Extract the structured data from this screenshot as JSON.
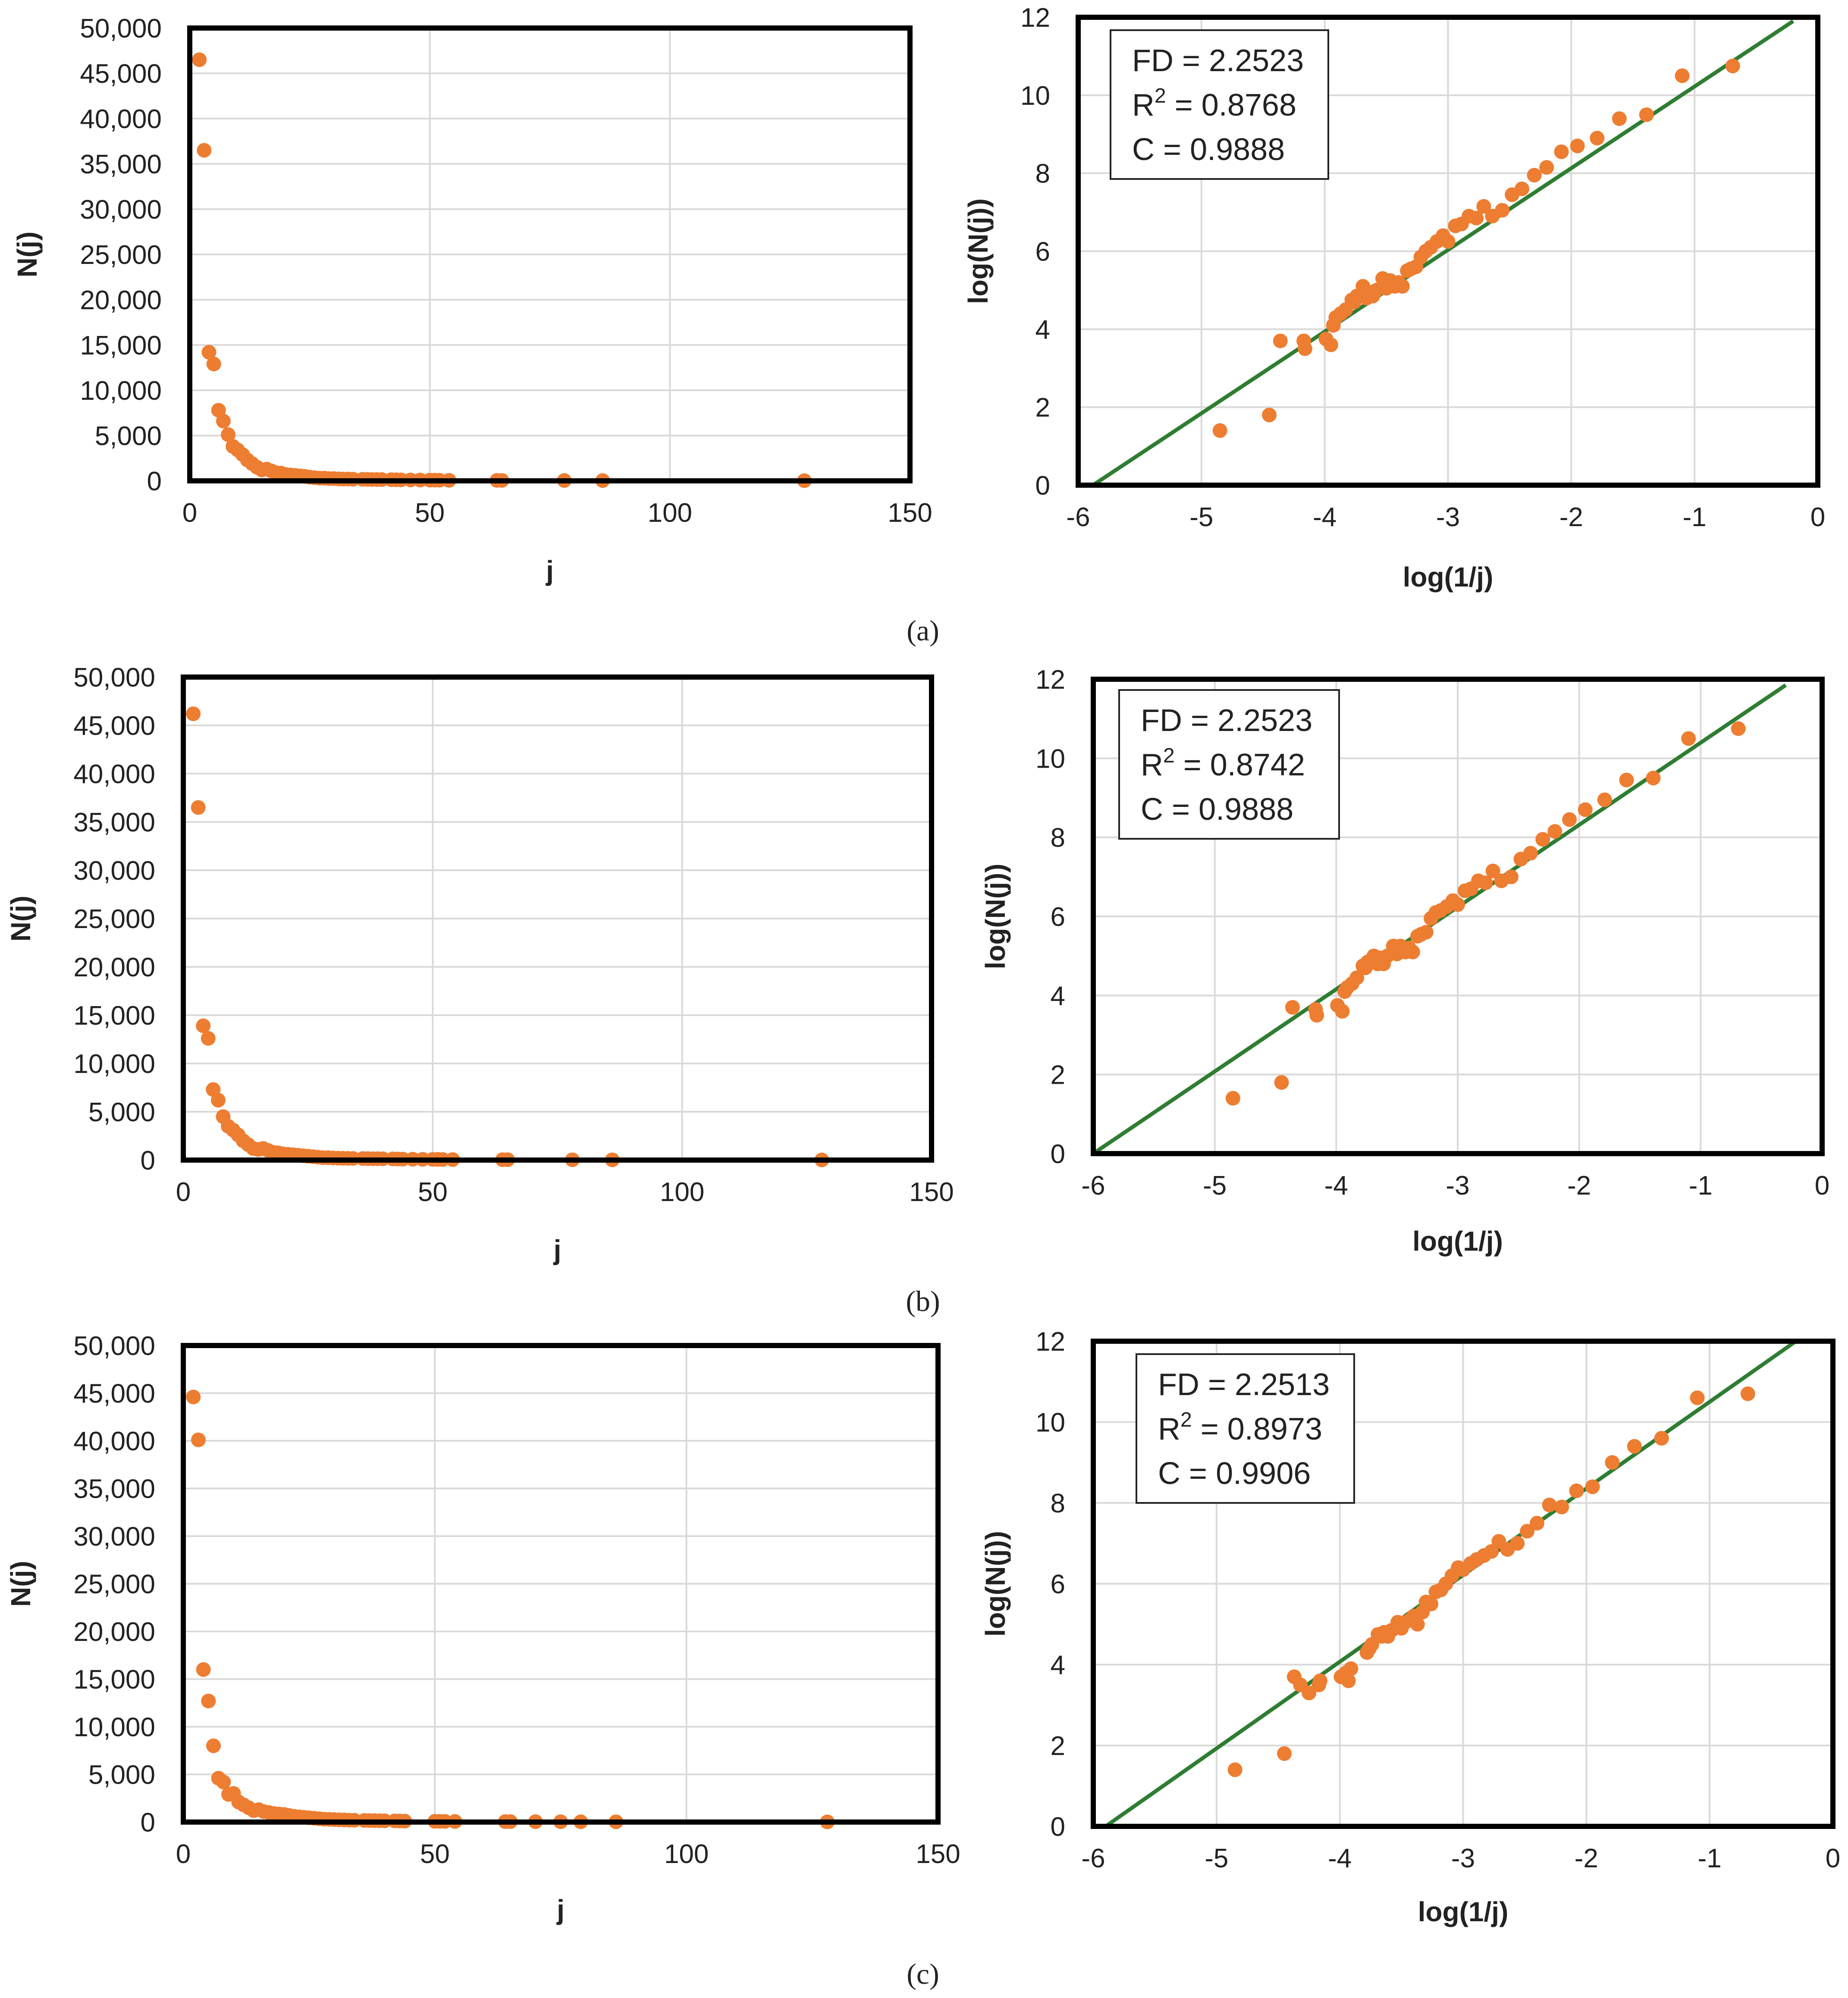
{
  "colors": {
    "point": "#ed7d31",
    "fit_line": "#2e7d32",
    "grid": "#d9d9d9",
    "frame": "#000000"
  },
  "chart_data": [
    {
      "id": "a-left",
      "type": "scatter",
      "panel": "a",
      "xlabel": "j",
      "ylabel": "N(j)",
      "xlim": [
        0,
        150
      ],
      "ylim": [
        0,
        50000
      ],
      "xticks": [
        0,
        50,
        100,
        150
      ],
      "xtick_labels": [
        "0",
        "50",
        "100",
        "150"
      ],
      "yticks": [
        0,
        5000,
        10000,
        15000,
        20000,
        25000,
        30000,
        35000,
        40000,
        45000,
        50000
      ],
      "ytick_labels": [
        "0",
        "5,000",
        "10,000",
        "15,000",
        "20,000",
        "25,000",
        "30,000",
        "35,000",
        "40,000",
        "45,000",
        "50,000"
      ],
      "grid": true,
      "x": [
        2,
        3,
        4,
        5,
        6,
        7,
        8,
        9,
        10,
        11,
        12,
        13,
        14,
        15,
        16,
        17,
        18,
        19,
        20,
        21,
        22,
        23,
        24,
        25,
        26,
        27,
        28,
        29,
        30,
        31,
        32,
        33,
        34,
        36,
        37,
        38,
        39,
        40,
        42,
        43,
        44,
        46,
        48,
        50,
        51,
        52,
        54,
        64,
        65,
        78,
        86,
        128
      ],
      "y": [
        46500,
        36500,
        14200,
        12900,
        7800,
        6600,
        5100,
        3800,
        3400,
        2900,
        2300,
        1900,
        1500,
        1200,
        1300,
        1100,
        900,
        850,
        700,
        650,
        600,
        550,
        500,
        400,
        350,
        300,
        300,
        250,
        250,
        220,
        200,
        200,
        180,
        170,
        160,
        150,
        150,
        140,
        130,
        120,
        110,
        100,
        90,
        80,
        80,
        70,
        60,
        50,
        50,
        40,
        30,
        20
      ]
    },
    {
      "id": "a-right",
      "type": "scatter",
      "panel": "a",
      "xlabel": "log(1/j)",
      "ylabel": "log(N(j))",
      "xlim": [
        -6,
        0
      ],
      "ylim": [
        0,
        12
      ],
      "xticks": [
        -6,
        -5,
        -4,
        -3,
        -2,
        -1,
        0
      ],
      "xtick_labels": [
        "-6",
        "-5",
        "-4",
        "-3",
        "-2",
        "-1",
        "0"
      ],
      "yticks": [
        0,
        2,
        4,
        6,
        8,
        10,
        12
      ],
      "ytick_labels": [
        "0",
        "2",
        "4",
        "6",
        "8",
        "10",
        "12"
      ],
      "grid": true,
      "fit_line": {
        "x": [
          -5.88,
          -0.2
        ],
        "y": [
          0,
          11.9
        ]
      },
      "annotation": {
        "fd_label": "FD",
        "fd_value": "2.2523",
        "r2_label": "R",
        "r2_sup": "2",
        "r2_value": "0.8768",
        "c_label": "C",
        "c_value": "0.9888"
      },
      "x": [
        -0.69,
        -1.1,
        -1.39,
        -1.61,
        -1.79,
        -1.95,
        -2.08,
        -2.2,
        -2.3,
        -2.4,
        -2.48,
        -2.56,
        -2.64,
        -2.71,
        -2.77,
        -2.83,
        -2.89,
        -2.94,
        -3.0,
        -3.04,
        -3.09,
        -3.14,
        -3.18,
        -3.22,
        -3.26,
        -3.3,
        -3.33,
        -3.37,
        -3.4,
        -3.43,
        -3.47,
        -3.5,
        -3.53,
        -3.58,
        -3.61,
        -3.64,
        -3.66,
        -3.69,
        -3.74,
        -3.76,
        -3.78,
        -3.83,
        -3.87,
        -3.91,
        -3.93,
        -3.95,
        -3.99,
        -4.16,
        -4.17,
        -4.36,
        -4.45,
        -4.85
      ],
      "y": [
        10.75,
        10.5,
        9.5,
        9.4,
        8.9,
        8.7,
        8.55,
        8.15,
        7.95,
        7.6,
        7.45,
        7.05,
        6.9,
        7.15,
        6.85,
        6.9,
        6.7,
        6.65,
        6.25,
        6.4,
        6.25,
        6.1,
        6.0,
        5.85,
        5.6,
        5.55,
        5.5,
        5.1,
        5.2,
        5.1,
        5.25,
        5.05,
        5.3,
        5.0,
        4.85,
        4.95,
        4.8,
        5.1,
        4.85,
        4.7,
        4.75,
        4.5,
        4.4,
        4.3,
        4.1,
        3.6,
        3.75,
        3.5,
        3.7,
        3.7,
        1.8,
        1.4
      ]
    },
    {
      "id": "b-left",
      "type": "scatter",
      "panel": "b",
      "xlabel": "j",
      "ylabel": "N(j)",
      "xlim": [
        0,
        150
      ],
      "ylim": [
        0,
        50000
      ],
      "xticks": [
        0,
        50,
        100,
        150
      ],
      "xtick_labels": [
        "0",
        "50",
        "100",
        "150"
      ],
      "yticks": [
        0,
        5000,
        10000,
        15000,
        20000,
        25000,
        30000,
        35000,
        40000,
        45000,
        50000
      ],
      "ytick_labels": [
        "0",
        "5,000",
        "10,000",
        "15,000",
        "20,000",
        "25,000",
        "30,000",
        "35,000",
        "40,000",
        "45,000",
        "50,000"
      ],
      "grid": true,
      "x": [
        2,
        3,
        4,
        5,
        6,
        7,
        8,
        9,
        10,
        11,
        12,
        13,
        14,
        15,
        16,
        17,
        18,
        19,
        20,
        21,
        22,
        23,
        24,
        25,
        26,
        27,
        28,
        29,
        30,
        31,
        32,
        33,
        34,
        36,
        37,
        38,
        39,
        40,
        42,
        43,
        44,
        46,
        48,
        50,
        51,
        52,
        54,
        64,
        65,
        78,
        86,
        128
      ],
      "y": [
        46200,
        36500,
        13900,
        12600,
        7300,
        6200,
        4500,
        3500,
        3100,
        2600,
        2000,
        1600,
        1200,
        1100,
        1200,
        1000,
        800,
        750,
        650,
        600,
        550,
        500,
        450,
        400,
        350,
        300,
        250,
        250,
        220,
        200,
        190,
        180,
        170,
        160,
        150,
        140,
        140,
        130,
        120,
        110,
        100,
        90,
        80,
        70,
        70,
        60,
        50,
        40,
        40,
        30,
        25,
        15
      ]
    },
    {
      "id": "b-right",
      "type": "scatter",
      "panel": "b",
      "xlabel": "log(1/j)",
      "ylabel": "log(N(j))",
      "xlim": [
        -6,
        0
      ],
      "ylim": [
        0,
        12
      ],
      "xticks": [
        -6,
        -5,
        -4,
        -3,
        -2,
        -1,
        0
      ],
      "xtick_labels": [
        "-6",
        "-5",
        "-4",
        "-3",
        "-2",
        "-1",
        "0"
      ],
      "yticks": [
        0,
        2,
        4,
        6,
        8,
        10,
        12
      ],
      "ytick_labels": [
        "0",
        "2",
        "4",
        "6",
        "8",
        "10",
        "12"
      ],
      "grid": true,
      "fit_line": {
        "x": [
          -6.0,
          -0.3
        ],
        "y": [
          0,
          11.85
        ]
      },
      "annotation": {
        "fd_label": "FD",
        "fd_value": "2.2523",
        "r2_label": "R",
        "r2_sup": "2",
        "r2_value": "0.8742",
        "c_label": "C",
        "c_value": "0.9888"
      },
      "x": [
        -0.69,
        -1.1,
        -1.39,
        -1.61,
        -1.79,
        -1.95,
        -2.08,
        -2.2,
        -2.3,
        -2.4,
        -2.48,
        -2.56,
        -2.64,
        -2.71,
        -2.77,
        -2.83,
        -2.89,
        -2.94,
        -3.0,
        -3.04,
        -3.09,
        -3.14,
        -3.18,
        -3.22,
        -3.26,
        -3.3,
        -3.33,
        -3.37,
        -3.4,
        -3.43,
        -3.47,
        -3.5,
        -3.53,
        -3.58,
        -3.61,
        -3.64,
        -3.66,
        -3.69,
        -3.74,
        -3.76,
        -3.78,
        -3.83,
        -3.87,
        -3.91,
        -3.93,
        -3.95,
        -3.99,
        -4.16,
        -4.17,
        -4.36,
        -4.45,
        -4.85
      ],
      "y": [
        10.75,
        10.5,
        9.5,
        9.45,
        8.95,
        8.7,
        8.45,
        8.15,
        7.95,
        7.6,
        7.45,
        7.0,
        6.9,
        7.15,
        6.85,
        6.9,
        6.7,
        6.65,
        6.3,
        6.4,
        6.25,
        6.15,
        6.1,
        5.95,
        5.6,
        5.55,
        5.5,
        5.1,
        5.2,
        5.1,
        5.25,
        5.05,
        5.25,
        5.0,
        4.8,
        4.95,
        4.8,
        5.0,
        4.85,
        4.7,
        4.75,
        4.45,
        4.3,
        4.2,
        4.1,
        3.6,
        3.75,
        3.5,
        3.65,
        3.7,
        1.8,
        1.4
      ]
    },
    {
      "id": "c-left",
      "type": "scatter",
      "panel": "c",
      "xlabel": "j",
      "ylabel": "N(j)",
      "xlim": [
        0,
        150
      ],
      "ylim": [
        0,
        50000
      ],
      "xticks": [
        0,
        50,
        100,
        150
      ],
      "xtick_labels": [
        "0",
        "50",
        "100",
        "150"
      ],
      "yticks": [
        0,
        5000,
        10000,
        15000,
        20000,
        25000,
        30000,
        35000,
        40000,
        45000,
        50000
      ],
      "ytick_labels": [
        "0",
        "5,000",
        "10,000",
        "15,000",
        "20,000",
        "25,000",
        "30,000",
        "35,000",
        "40,000",
        "45,000",
        "50,000"
      ],
      "grid": true,
      "x": [
        2,
        3,
        4,
        5,
        6,
        7,
        8,
        9,
        10,
        11,
        12,
        13,
        14,
        15,
        16,
        17,
        18,
        19,
        20,
        21,
        22,
        23,
        24,
        25,
        26,
        27,
        28,
        29,
        30,
        31,
        32,
        33,
        34,
        36,
        37,
        38,
        39,
        40,
        42,
        43,
        44,
        50,
        51,
        52,
        54,
        64,
        65,
        70,
        75,
        79,
        86,
        128
      ],
      "y": [
        44600,
        40100,
        16000,
        12700,
        8000,
        4600,
        4200,
        2900,
        3000,
        2100,
        1800,
        1500,
        1200,
        1300,
        1100,
        1000,
        900,
        850,
        800,
        700,
        600,
        550,
        500,
        450,
        400,
        350,
        300,
        280,
        260,
        240,
        220,
        200,
        190,
        170,
        160,
        150,
        140,
        130,
        120,
        110,
        100,
        80,
        75,
        70,
        60,
        50,
        45,
        40,
        35,
        30,
        25,
        15
      ]
    },
    {
      "id": "c-right",
      "type": "scatter",
      "panel": "c",
      "xlabel": "log(1/j)",
      "ylabel": "log(N(j))",
      "xlim": [
        -6,
        0
      ],
      "ylim": [
        0,
        12
      ],
      "xticks": [
        -6,
        -5,
        -4,
        -3,
        -2,
        -1,
        0
      ],
      "xtick_labels": [
        "-6",
        "-5",
        "-4",
        "-3",
        "-2",
        "-1",
        "0"
      ],
      "yticks": [
        0,
        2,
        4,
        6,
        8,
        10,
        12
      ],
      "ytick_labels": [
        "0",
        "2",
        "4",
        "6",
        "8",
        "10",
        "12"
      ],
      "grid": true,
      "fit_line": {
        "x": [
          -5.9,
          -0.3
        ],
        "y": [
          0,
          12
        ]
      },
      "annotation": {
        "fd_label": "FD",
        "fd_value": "2.2513",
        "r2_label": "R",
        "r2_sup": "2",
        "r2_value": "0.8973",
        "c_label": "C",
        "c_value": "0.9906"
      },
      "x": [
        -0.69,
        -1.1,
        -1.39,
        -1.61,
        -1.79,
        -1.95,
        -2.08,
        -2.2,
        -2.3,
        -2.4,
        -2.48,
        -2.56,
        -2.64,
        -2.71,
        -2.77,
        -2.83,
        -2.89,
        -2.94,
        -3.0,
        -3.04,
        -3.09,
        -3.14,
        -3.18,
        -3.22,
        -3.26,
        -3.3,
        -3.33,
        -3.37,
        -3.4,
        -3.43,
        -3.47,
        -3.5,
        -3.53,
        -3.58,
        -3.61,
        -3.64,
        -3.66,
        -3.69,
        -3.74,
        -3.76,
        -3.78,
        -3.91,
        -3.93,
        -3.95,
        -3.99,
        -4.16,
        -4.17,
        -4.25,
        -4.32,
        -4.37,
        -4.45,
        -4.85
      ],
      "y": [
        10.7,
        10.6,
        9.6,
        9.4,
        9.0,
        8.4,
        8.3,
        7.9,
        7.95,
        7.5,
        7.3,
        7.0,
        6.85,
        7.05,
        6.8,
        6.7,
        6.6,
        6.5,
        6.35,
        6.4,
        6.2,
        6.0,
        5.85,
        5.8,
        5.5,
        5.55,
        5.3,
        5.0,
        5.2,
        5.1,
        5.05,
        4.9,
        5.05,
        4.85,
        4.7,
        4.8,
        4.7,
        4.75,
        4.5,
        4.4,
        4.3,
        3.9,
        3.6,
        3.8,
        3.7,
        3.6,
        3.5,
        3.3,
        3.5,
        3.7,
        1.8,
        1.4
      ]
    }
  ],
  "panel_labels": {
    "a": "(a)",
    "b": "(b)",
    "c": "(c)"
  }
}
